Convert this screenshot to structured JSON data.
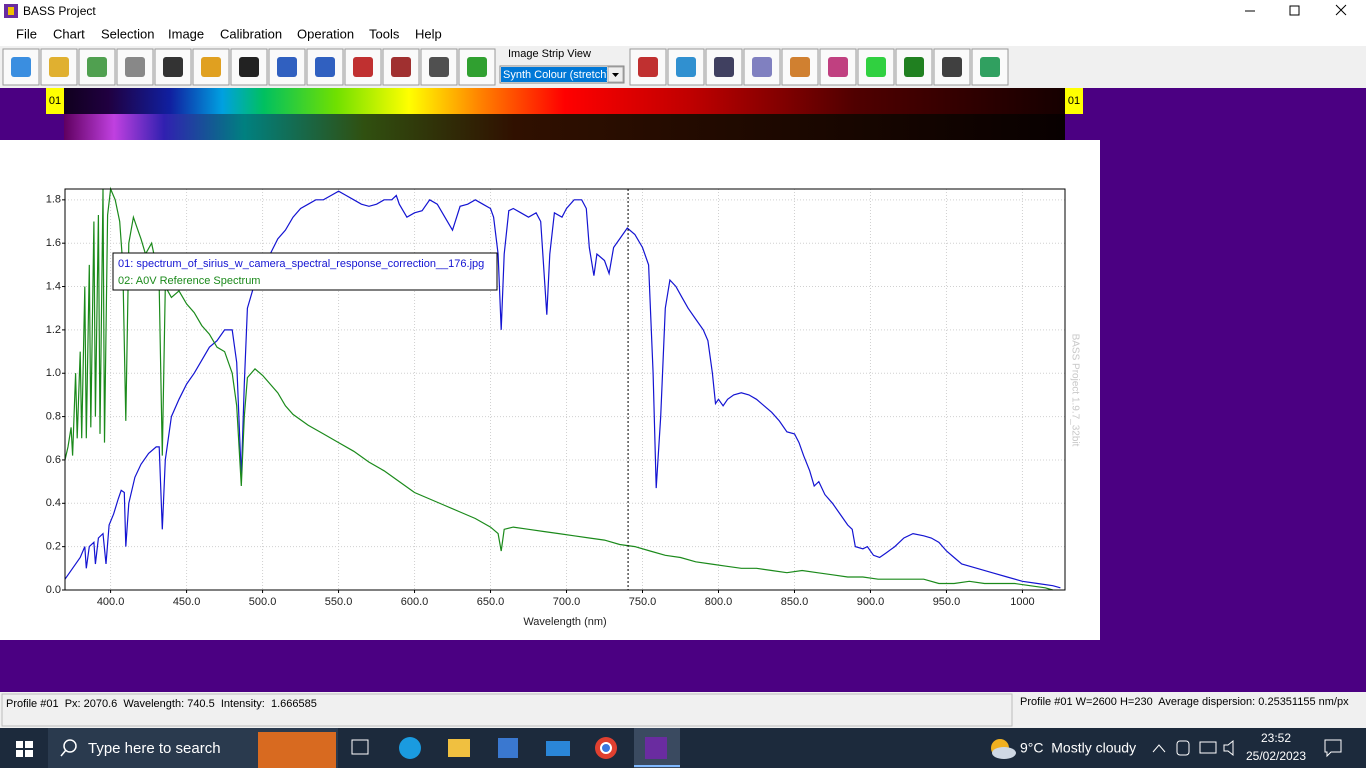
{
  "window": {
    "title": "BASS Project"
  },
  "menu": [
    "File",
    "Chart",
    "Selection",
    "Image",
    "Calibration",
    "Operation",
    "Tools",
    "Help"
  ],
  "toolbar": {
    "strip_label": "Image Strip View",
    "dropdown": "Synth Colour (stretch)"
  },
  "strip": {
    "left_label": "01",
    "right_label": "01"
  },
  "chart_data": {
    "type": "line",
    "xlabel": "Wavelength (nm)",
    "watermark": "BASS Project 1.9.7_32bit",
    "xlim": [
      370,
      1028
    ],
    "ylim": [
      0,
      1.85
    ],
    "xticks": [
      {
        "value": 400,
        "label": "400.0"
      },
      {
        "value": 450,
        "label": "450.0"
      },
      {
        "value": 500,
        "label": "500.0"
      },
      {
        "value": 550,
        "label": "550.0"
      },
      {
        "value": 600,
        "label": "600.0"
      },
      {
        "value": 650,
        "label": "650.0"
      },
      {
        "value": 700,
        "label": "700.0"
      },
      {
        "value": 750,
        "label": "750.0"
      },
      {
        "value": 800,
        "label": "800.0"
      },
      {
        "value": 850,
        "label": "850.0"
      },
      {
        "value": 900,
        "label": "900.0"
      },
      {
        "value": 950,
        "label": "950.0"
      },
      1000
    ],
    "yticks": [
      {
        "value": 0,
        "label": "0.0"
      },
      0.2,
      0.4,
      0.6,
      0.8,
      {
        "value": 1,
        "label": "1.0"
      },
      1.2,
      1.4,
      1.6,
      1.8
    ],
    "grid": true,
    "cursor": 740.5,
    "series": [
      {
        "name": "01: spectrum_of_sirius_w_camera_spectral_response_correction__176.jpg",
        "color": "#1414d2",
        "x": [
          370,
          375,
          380,
          383,
          384,
          386,
          389,
          390,
          392,
          395,
          397,
          399,
          402,
          405,
          407,
          409,
          410,
          412,
          416,
          420,
          425,
          430,
          432,
          434,
          436,
          440,
          445,
          450,
          455,
          460,
          465,
          470,
          475,
          480,
          483,
          486,
          488,
          490,
          495,
          500,
          505,
          510,
          515,
          520,
          525,
          530,
          535,
          540,
          545,
          550,
          555,
          560,
          565,
          570,
          575,
          580,
          585,
          588,
          590,
          595,
          600,
          605,
          610,
          615,
          620,
          625,
          630,
          635,
          640,
          645,
          650,
          652,
          655,
          657,
          659,
          662,
          665,
          670,
          675,
          680,
          683,
          687,
          689,
          692,
          697,
          700,
          705,
          710,
          713,
          715,
          718,
          720,
          725,
          728,
          731,
          735,
          740,
          745,
          750,
          754,
          757,
          759,
          762,
          765,
          768,
          772,
          776,
          780,
          785,
          790,
          793,
          796,
          798,
          800,
          803,
          806,
          810,
          815,
          820,
          825,
          830,
          835,
          840,
          845,
          850,
          853,
          856,
          860,
          863,
          866,
          870,
          875,
          880,
          885,
          888,
          890,
          895,
          898,
          902,
          906,
          910,
          916,
          922,
          928,
          935,
          940,
          945,
          950,
          955,
          960,
          970,
          980,
          990,
          1000,
          1010,
          1020,
          1025
        ],
        "values": [
          0.05,
          0.1,
          0.15,
          0.2,
          0.1,
          0.2,
          0.22,
          0.12,
          0.24,
          0.26,
          0.12,
          0.3,
          0.35,
          0.42,
          0.46,
          0.45,
          0.2,
          0.4,
          0.52,
          0.58,
          0.63,
          0.66,
          0.66,
          0.28,
          0.6,
          0.8,
          0.88,
          0.95,
          1.0,
          1.06,
          1.12,
          1.15,
          1.2,
          1.2,
          1.05,
          0.52,
          0.95,
          1.3,
          1.42,
          1.5,
          1.55,
          1.62,
          1.66,
          1.72,
          1.76,
          1.78,
          1.8,
          1.8,
          1.82,
          1.84,
          1.82,
          1.8,
          1.78,
          1.77,
          1.78,
          1.8,
          1.8,
          1.82,
          1.78,
          1.72,
          1.74,
          1.75,
          1.8,
          1.78,
          1.72,
          1.66,
          1.77,
          1.78,
          1.8,
          1.78,
          1.76,
          1.72,
          1.55,
          1.2,
          1.55,
          1.75,
          1.76,
          1.74,
          1.72,
          1.74,
          1.7,
          1.27,
          1.55,
          1.74,
          1.72,
          1.76,
          1.8,
          1.8,
          1.76,
          1.58,
          1.45,
          1.55,
          1.52,
          1.46,
          1.58,
          1.62,
          1.67,
          1.64,
          1.58,
          1.5,
          1.0,
          0.47,
          0.8,
          1.3,
          1.43,
          1.4,
          1.35,
          1.3,
          1.25,
          1.2,
          1.15,
          1.0,
          0.86,
          0.88,
          0.85,
          0.88,
          0.9,
          0.91,
          0.9,
          0.88,
          0.85,
          0.82,
          0.78,
          0.73,
          0.72,
          0.68,
          0.62,
          0.55,
          0.48,
          0.5,
          0.44,
          0.4,
          0.35,
          0.3,
          0.28,
          0.2,
          0.19,
          0.2,
          0.16,
          0.15,
          0.17,
          0.2,
          0.24,
          0.26,
          0.25,
          0.24,
          0.22,
          0.18,
          0.15,
          0.12,
          0.1,
          0.08,
          0.06,
          0.04,
          0.03,
          0.02,
          0.01
        ]
      },
      {
        "name": "02: A0V Reference Spectrum",
        "color": "#1b8a1b",
        "x": [
          370,
          372,
          374,
          375,
          377,
          378,
          380,
          381,
          383,
          384,
          386,
          387,
          389,
          390,
          392,
          393,
          395,
          396,
          398,
          400,
          403,
          406,
          408,
          410,
          412,
          415,
          418,
          420,
          423,
          427,
          430,
          432,
          434,
          436,
          440,
          445,
          450,
          455,
          460,
          465,
          470,
          475,
          480,
          483,
          486,
          488,
          490,
          495,
          500,
          505,
          510,
          515,
          520,
          530,
          540,
          550,
          560,
          570,
          580,
          590,
          600,
          610,
          620,
          630,
          640,
          650,
          655,
          657,
          659,
          665,
          675,
          685,
          695,
          705,
          715,
          725,
          735,
          745,
          755,
          765,
          775,
          785,
          795,
          805,
          815,
          825,
          835,
          845,
          855,
          865,
          875,
          885,
          895,
          905,
          915,
          925,
          935,
          945,
          955,
          965,
          975,
          985,
          995,
          1005,
          1015,
          1020
        ],
        "values": [
          0.6,
          0.66,
          0.75,
          0.62,
          1.0,
          0.7,
          1.1,
          0.7,
          1.4,
          0.7,
          1.5,
          0.75,
          1.7,
          0.8,
          1.73,
          0.72,
          1.85,
          0.68,
          1.73,
          1.85,
          1.8,
          1.7,
          1.5,
          0.78,
          1.6,
          1.72,
          1.66,
          1.62,
          1.55,
          1.6,
          1.5,
          1.4,
          0.62,
          1.4,
          1.35,
          1.38,
          1.32,
          1.28,
          1.22,
          1.18,
          1.12,
          1.1,
          1.0,
          0.85,
          0.48,
          0.8,
          0.98,
          1.02,
          0.99,
          0.95,
          0.91,
          0.85,
          0.81,
          0.76,
          0.72,
          0.68,
          0.64,
          0.59,
          0.55,
          0.5,
          0.45,
          0.42,
          0.39,
          0.36,
          0.33,
          0.29,
          0.26,
          0.18,
          0.28,
          0.29,
          0.28,
          0.27,
          0.26,
          0.25,
          0.24,
          0.23,
          0.21,
          0.2,
          0.18,
          0.16,
          0.15,
          0.13,
          0.12,
          0.11,
          0.1,
          0.1,
          0.09,
          0.08,
          0.09,
          0.08,
          0.07,
          0.06,
          0.06,
          0.05,
          0.05,
          0.05,
          0.05,
          0.03,
          0.03,
          0.04,
          0.03,
          0.03,
          0.03,
          0.02,
          0.01,
          0.0
        ]
      }
    ]
  },
  "status": {
    "left": "Profile #01  Px: 2070.6  Wavelength: 740.5  Intensity:  1.666585",
    "right": "Profile #01 W=2600 H=230  Average dispersion: 0.25351155 nm/px"
  },
  "taskbar": {
    "search": "Type here to search",
    "weather": "9°C  Mostly cloudy",
    "time": "23:52",
    "date": "25/02/2023"
  }
}
